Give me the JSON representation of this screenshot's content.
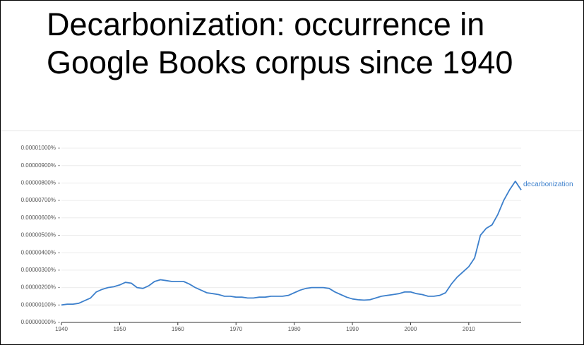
{
  "chart_data": {
    "type": "line",
    "title": [
      "Decarbonization: occurrence in",
      "Google Books corpus since 1940"
    ],
    "x": [
      1940,
      1941,
      1942,
      1943,
      1944,
      1945,
      1946,
      1947,
      1948,
      1949,
      1950,
      1951,
      1952,
      1953,
      1954,
      1955,
      1956,
      1957,
      1958,
      1959,
      1960,
      1961,
      1962,
      1963,
      1964,
      1965,
      1966,
      1967,
      1968,
      1969,
      1970,
      1971,
      1972,
      1973,
      1974,
      1975,
      1976,
      1977,
      1978,
      1979,
      1980,
      1981,
      1982,
      1983,
      1984,
      1985,
      1986,
      1987,
      1988,
      1989,
      1990,
      1991,
      1992,
      1993,
      1994,
      1995,
      1996,
      1997,
      1998,
      1999,
      2000,
      2001,
      2002,
      2003,
      2004,
      2005,
      2006,
      2007,
      2008,
      2009,
      2010,
      2011,
      2012,
      2013,
      2014,
      2015,
      2016,
      2017,
      2018,
      2019
    ],
    "series": [
      {
        "name": "decarbonization",
        "color": "#3d80cc",
        "values": [
          1e-06,
          1.05e-06,
          1.05e-06,
          1.1e-06,
          1.25e-06,
          1.4e-06,
          1.75e-06,
          1.9e-06,
          2e-06,
          2.05e-06,
          2.15e-06,
          2.3e-06,
          2.25e-06,
          2e-06,
          1.95e-06,
          2.1e-06,
          2.35e-06,
          2.45e-06,
          2.4e-06,
          2.35e-06,
          2.35e-06,
          2.35e-06,
          2.2e-06,
          2e-06,
          1.85e-06,
          1.7e-06,
          1.65e-06,
          1.6e-06,
          1.5e-06,
          1.5e-06,
          1.45e-06,
          1.45e-06,
          1.4e-06,
          1.4e-06,
          1.45e-06,
          1.45e-06,
          1.5e-06,
          1.5e-06,
          1.5e-06,
          1.55e-06,
          1.7e-06,
          1.85e-06,
          1.95e-06,
          2e-06,
          2e-06,
          2e-06,
          1.95e-06,
          1.75e-06,
          1.6e-06,
          1.45e-06,
          1.35e-06,
          1.3e-06,
          1.28e-06,
          1.3e-06,
          1.4e-06,
          1.5e-06,
          1.55e-06,
          1.6e-06,
          1.65e-06,
          1.75e-06,
          1.75e-06,
          1.65e-06,
          1.6e-06,
          1.5e-06,
          1.5e-06,
          1.55e-06,
          1.7e-06,
          2.2e-06,
          2.6e-06,
          2.9e-06,
          3.2e-06,
          3.7e-06,
          5e-06,
          5.4e-06,
          5.6e-06,
          6.2e-06,
          7e-06,
          7.6e-06,
          8.1e-06,
          7.6e-06
        ]
      }
    ],
    "xlim": [
      1940,
      2019
    ],
    "xticks": [
      1940,
      1950,
      1960,
      1970,
      1980,
      1990,
      2000,
      2010
    ],
    "ylim": [
      0,
      1e-05
    ],
    "yticks": [
      {
        "value": 0,
        "label": "0.00000000%"
      },
      {
        "value": 1e-06,
        "label": "0.00000100%"
      },
      {
        "value": 2e-06,
        "label": "0.00000200%"
      },
      {
        "value": 3e-06,
        "label": "0.00000300%"
      },
      {
        "value": 4e-06,
        "label": "0.00000400%"
      },
      {
        "value": 5e-06,
        "label": "0.00000500%"
      },
      {
        "value": 6e-06,
        "label": "0.00000600%"
      },
      {
        "value": 7e-06,
        "label": "0.00000700%"
      },
      {
        "value": 8e-06,
        "label": "0.00000800%"
      },
      {
        "value": 9e-06,
        "label": "0.00000900%"
      },
      {
        "value": 1e-05,
        "label": "0.00001000%"
      }
    ],
    "grid": true
  }
}
